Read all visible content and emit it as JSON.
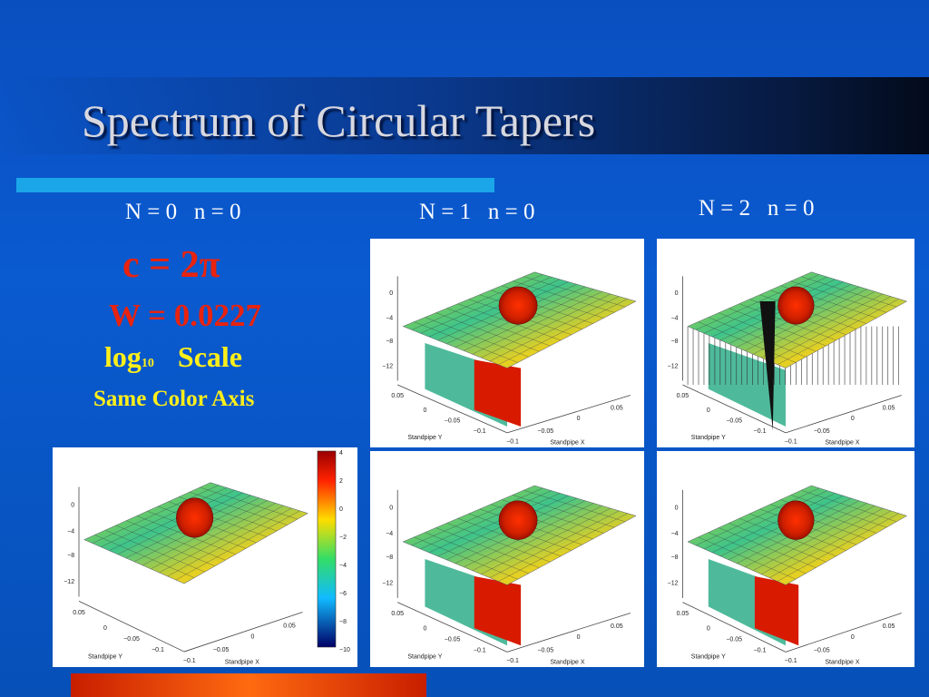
{
  "title": "Spectrum of Circular Tapers",
  "captions": [
    "N = 0   n = 0",
    "N = 1   n = 0",
    "N = 2   n = 0"
  ],
  "formula": {
    "c_line": "c = 2π",
    "w_line": "W = 0.0227",
    "log_word": "log",
    "log_base": "10",
    "scale_word": "Scale",
    "same_axis": "Same Color Axis"
  },
  "plot_axis": {
    "z_ticks": [
      "0",
      "−4",
      "−8",
      "−12"
    ],
    "y_ticks": [
      "0.05",
      "0",
      "−0.05",
      "−0.1"
    ],
    "x_ticks": [
      "−0.1",
      "−0.05",
      "0",
      "0.05"
    ],
    "y_label": "Standpipe Y",
    "x_label": "Standpipe X"
  },
  "colorbar_ticks": [
    "4",
    "2",
    "0",
    "−2",
    "−4",
    "−6",
    "−8",
    "−10"
  ]
}
